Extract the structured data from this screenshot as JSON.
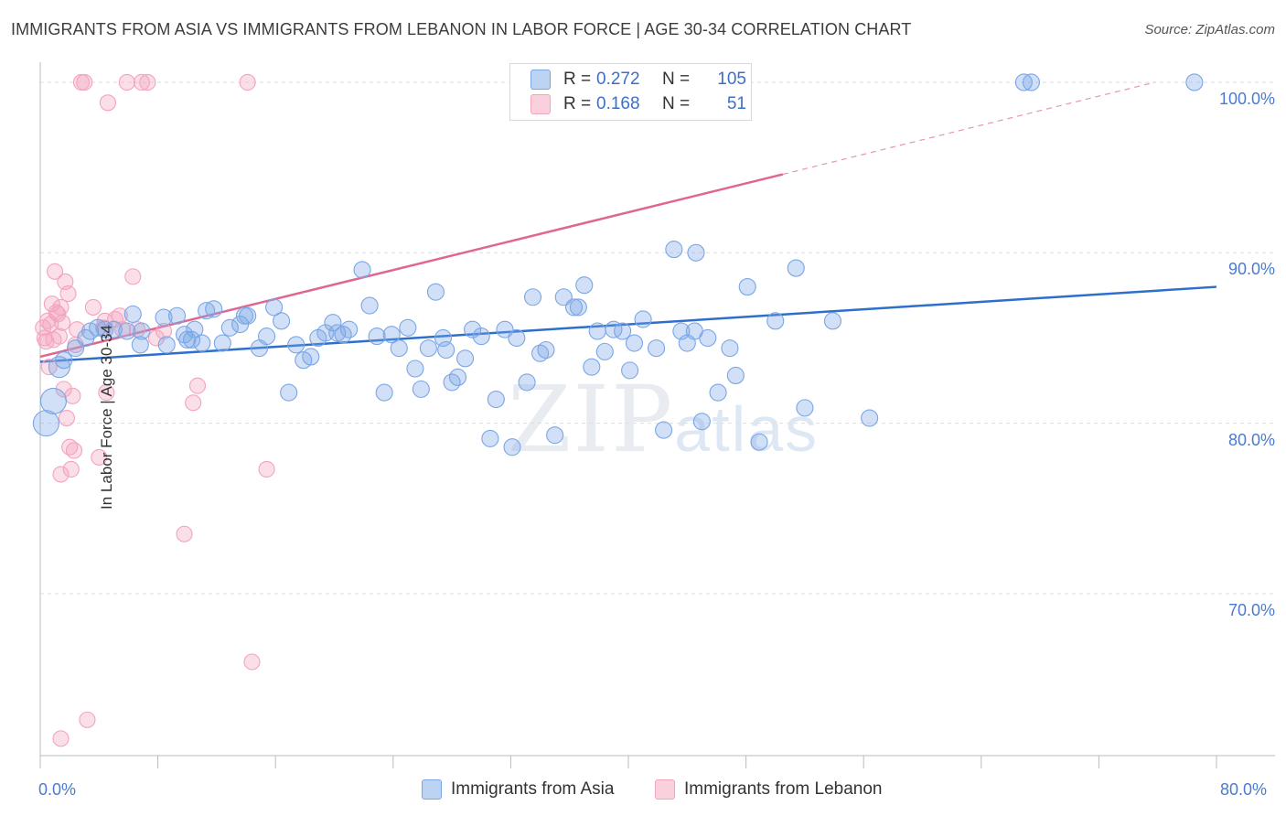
{
  "title": "IMMIGRANTS FROM ASIA VS IMMIGRANTS FROM LEBANON IN LABOR FORCE | AGE 30-34 CORRELATION CHART",
  "source": "Source: ZipAtlas.com",
  "watermark": {
    "zip": "ZIP",
    "atlas": "atlas"
  },
  "colors": {
    "asia": "#7aa6e6",
    "asia_line": "#2f6fcc",
    "lebanon": "#f4a3bd",
    "lebanon_line": "#e0668f",
    "tick": "#4a7bd0"
  },
  "legend": {
    "r_label": "R =",
    "n_label": "N =",
    "asia": {
      "r": "0.272",
      "n": "105"
    },
    "lebanon": {
      "r": "0.168",
      "n": "51"
    }
  },
  "bottom_legend": {
    "asia": "Immigrants from Asia",
    "lebanon": "Immigrants from Lebanon"
  },
  "chart_data": {
    "type": "scatter",
    "xlabel": "",
    "ylabel": "In Labor Force | Age 30-34",
    "xlim": [
      0,
      80
    ],
    "ylim": [
      60.5,
      101.5
    ],
    "x_tick_labels": {
      "min": "0.0%",
      "max": "80.0%"
    },
    "y_ticks": [
      {
        "value": 100,
        "label": "100.0%"
      },
      {
        "value": 90,
        "label": "90.0%"
      },
      {
        "value": 80,
        "label": "80.0%"
      },
      {
        "value": 70,
        "label": "70.0%"
      }
    ],
    "series": [
      {
        "name": "Immigrants from Asia",
        "trend": {
          "x0": 0,
          "y0": 83.6,
          "x1": 80,
          "y1": 88.0
        },
        "points": [
          [
            0.4,
            80.0
          ],
          [
            0.9,
            81.3
          ],
          [
            1.3,
            83.3
          ],
          [
            1.6,
            83.7
          ],
          [
            2.4,
            84.4
          ],
          [
            3.1,
            85.0
          ],
          [
            3.4,
            85.4
          ],
          [
            3.9,
            85.6
          ],
          [
            4.4,
            85.5
          ],
          [
            5.0,
            85.5
          ],
          [
            5.9,
            85.4
          ],
          [
            6.3,
            86.4
          ],
          [
            6.8,
            84.6
          ],
          [
            6.9,
            85.4
          ],
          [
            8.4,
            86.2
          ],
          [
            8.6,
            84.6
          ],
          [
            9.3,
            86.3
          ],
          [
            9.8,
            85.2
          ],
          [
            10.0,
            84.9
          ],
          [
            10.3,
            84.9
          ],
          [
            10.5,
            85.5
          ],
          [
            11.0,
            84.7
          ],
          [
            11.3,
            86.6
          ],
          [
            11.8,
            86.7
          ],
          [
            12.4,
            84.7
          ],
          [
            12.9,
            85.6
          ],
          [
            13.6,
            85.8
          ],
          [
            13.9,
            86.3
          ],
          [
            14.1,
            86.3
          ],
          [
            14.9,
            84.4
          ],
          [
            15.4,
            85.1
          ],
          [
            15.9,
            86.8
          ],
          [
            16.4,
            86.0
          ],
          [
            16.9,
            81.8
          ],
          [
            17.4,
            84.6
          ],
          [
            17.9,
            83.7
          ],
          [
            18.4,
            83.9
          ],
          [
            18.9,
            85.0
          ],
          [
            19.4,
            85.3
          ],
          [
            19.9,
            85.9
          ],
          [
            20.2,
            85.3
          ],
          [
            20.6,
            85.2
          ],
          [
            21.0,
            85.5
          ],
          [
            21.9,
            89.0
          ],
          [
            22.4,
            86.9
          ],
          [
            22.9,
            85.1
          ],
          [
            23.4,
            81.8
          ],
          [
            23.9,
            85.2
          ],
          [
            24.4,
            84.4
          ],
          [
            25.0,
            85.6
          ],
          [
            25.5,
            83.2
          ],
          [
            25.9,
            82.0
          ],
          [
            26.4,
            84.4
          ],
          [
            26.9,
            87.7
          ],
          [
            27.4,
            85.0
          ],
          [
            27.6,
            84.3
          ],
          [
            28.0,
            82.4
          ],
          [
            28.4,
            82.7
          ],
          [
            28.9,
            83.8
          ],
          [
            29.4,
            85.5
          ],
          [
            30.0,
            85.1
          ],
          [
            30.6,
            79.1
          ],
          [
            31.0,
            81.4
          ],
          [
            31.6,
            85.5
          ],
          [
            32.1,
            78.6
          ],
          [
            32.4,
            85.0
          ],
          [
            33.1,
            82.4
          ],
          [
            33.5,
            87.4
          ],
          [
            34.0,
            84.1
          ],
          [
            34.4,
            84.3
          ],
          [
            35.0,
            79.3
          ],
          [
            35.6,
            87.4
          ],
          [
            36.3,
            86.8
          ],
          [
            36.6,
            86.8
          ],
          [
            37.0,
            88.1
          ],
          [
            37.5,
            83.3
          ],
          [
            37.9,
            85.4
          ],
          [
            38.4,
            84.2
          ],
          [
            39.0,
            85.5
          ],
          [
            39.6,
            85.4
          ],
          [
            40.1,
            83.1
          ],
          [
            40.4,
            84.7
          ],
          [
            41.0,
            86.1
          ],
          [
            41.9,
            84.4
          ],
          [
            42.4,
            79.6
          ],
          [
            43.1,
            90.2
          ],
          [
            43.6,
            85.4
          ],
          [
            44.0,
            84.7
          ],
          [
            44.5,
            85.4
          ],
          [
            45.0,
            80.1
          ],
          [
            45.4,
            85.0
          ],
          [
            46.1,
            81.8
          ],
          [
            46.9,
            84.4
          ],
          [
            47.3,
            82.8
          ],
          [
            48.1,
            88.0
          ],
          [
            48.9,
            78.9
          ],
          [
            50.0,
            86.0
          ],
          [
            51.4,
            89.1
          ],
          [
            52.0,
            80.9
          ],
          [
            53.9,
            86.0
          ],
          [
            56.4,
            80.3
          ],
          [
            66.9,
            100.0
          ],
          [
            67.4,
            100.0
          ],
          [
            78.5,
            100.0
          ],
          [
            44.6,
            90.0
          ]
        ]
      },
      {
        "name": "Immigrants from Lebanon",
        "trend": {
          "x0": 0,
          "y0": 83.9,
          "x1": 50.5,
          "y1": 94.6,
          "dash_to_x": 75.8,
          "dash_to_y": 100.0
        },
        "points": [
          [
            0.2,
            85.6
          ],
          [
            0.3,
            85.0
          ],
          [
            0.4,
            84.8
          ],
          [
            0.5,
            86.0
          ],
          [
            0.6,
            83.3
          ],
          [
            0.7,
            85.8
          ],
          [
            0.8,
            87.0
          ],
          [
            0.9,
            84.9
          ],
          [
            1.0,
            88.9
          ],
          [
            1.1,
            86.5
          ],
          [
            1.2,
            86.4
          ],
          [
            1.3,
            85.1
          ],
          [
            1.4,
            86.8
          ],
          [
            1.4,
            77.0
          ],
          [
            1.5,
            85.9
          ],
          [
            1.6,
            82.0
          ],
          [
            1.7,
            88.3
          ],
          [
            1.8,
            80.3
          ],
          [
            1.9,
            87.6
          ],
          [
            2.0,
            78.6
          ],
          [
            2.1,
            77.3
          ],
          [
            2.2,
            81.6
          ],
          [
            2.3,
            78.4
          ],
          [
            2.4,
            84.6
          ],
          [
            2.5,
            85.5
          ],
          [
            2.8,
            100.0
          ],
          [
            3.0,
            100.0
          ],
          [
            3.2,
            62.6
          ],
          [
            3.6,
            86.8
          ],
          [
            4.0,
            78.0
          ],
          [
            4.3,
            85.6
          ],
          [
            4.4,
            86.0
          ],
          [
            4.5,
            81.8
          ],
          [
            4.6,
            98.8
          ],
          [
            5.1,
            86.1
          ],
          [
            5.4,
            86.3
          ],
          [
            5.6,
            85.5
          ],
          [
            5.9,
            100.0
          ],
          [
            6.3,
            88.6
          ],
          [
            6.6,
            85.5
          ],
          [
            6.9,
            100.0
          ],
          [
            7.3,
            100.0
          ],
          [
            7.9,
            85.0
          ],
          [
            8.4,
            85.4
          ],
          [
            9.8,
            73.5
          ],
          [
            10.4,
            81.2
          ],
          [
            10.7,
            82.2
          ],
          [
            14.1,
            100.0
          ],
          [
            14.4,
            66.0
          ],
          [
            15.4,
            77.3
          ],
          [
            1.4,
            61.5
          ]
        ]
      }
    ]
  }
}
